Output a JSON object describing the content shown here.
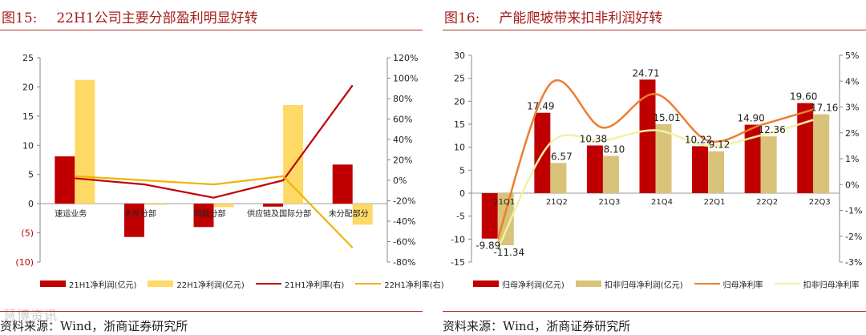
{
  "figures": [
    {
      "id": "fig15",
      "number": "图15:",
      "title": "22H1公司主要分部盈利明显好转",
      "source": "资料来源：Wind，浙商证券研究所"
    },
    {
      "id": "fig16",
      "number": "图16:",
      "title": "产能爬坡带来扣非利润好转",
      "source": "资料来源：Wind，浙商证券研究所"
    }
  ],
  "watermark": "慧博资讯",
  "chart_data": [
    {
      "type": "bar",
      "title": "22H1公司主要分部盈利明显好转",
      "categories": [
        "速运业务",
        "大件分部",
        "同城分部",
        "供应链及国际分部",
        "未分配部分"
      ],
      "series": [
        {
          "name": "21H1净利润(亿元)",
          "kind": "bar",
          "axis": "left",
          "color": "#c00000",
          "values": [
            8.1,
            -5.7,
            -4.0,
            -0.5,
            6.7
          ]
        },
        {
          "name": "22H1净利润(亿元)",
          "kind": "bar",
          "axis": "left",
          "color": "#ffd966",
          "values": [
            21.2,
            -0.2,
            -0.6,
            16.9,
            -3.6
          ]
        },
        {
          "name": "21H1净利率(右)",
          "kind": "line",
          "axis": "right",
          "color": "#c00000",
          "values": [
            2,
            -4,
            -17,
            0,
            93
          ]
        },
        {
          "name": "22H1净利率(右)",
          "kind": "line",
          "axis": "right",
          "color": "#f0b400",
          "values": [
            4,
            0,
            -4,
            4,
            -66
          ]
        }
      ],
      "left_axis": {
        "min": -10,
        "max": 25,
        "ticks": [
          "25",
          "20",
          "15",
          "10",
          "5",
          "0",
          "(5)",
          "(10)"
        ]
      },
      "right_axis": {
        "min": -80,
        "max": 120,
        "ticks": [
          "120%",
          "100%",
          "80%",
          "60%",
          "40%",
          "20%",
          "0%",
          "-20%",
          "-40%",
          "-60%",
          "-80%"
        ]
      },
      "legend_position": "bottom"
    },
    {
      "type": "bar",
      "title": "产能爬坡带来扣非利润好转",
      "categories": [
        "21Q1",
        "21Q2",
        "21Q3",
        "21Q4",
        "22Q1",
        "22Q2",
        "22Q3"
      ],
      "series": [
        {
          "name": "归母净利润(亿元)",
          "kind": "bar",
          "axis": "left",
          "color": "#c00000",
          "values": [
            -9.89,
            17.49,
            10.38,
            24.71,
            10.22,
            14.9,
            19.6
          ],
          "labels": [
            "-9.89",
            "17.49",
            "10.38",
            "24.71",
            "10.22",
            "14.90",
            "19.60"
          ]
        },
        {
          "name": "扣非归母净利润(亿元)",
          "kind": "bar",
          "axis": "left",
          "color": "#d9c27a",
          "values": [
            -11.34,
            6.57,
            8.1,
            15.01,
            9.12,
            12.36,
            17.16
          ],
          "labels": [
            "-11.34",
            "6.57",
            "8.10",
            "15.01",
            "9.12",
            "12.36",
            "17.16"
          ]
        },
        {
          "name": "归母净利率",
          "kind": "line",
          "axis": "right",
          "color": "#ed7d31",
          "values": [
            -2.1,
            3.9,
            2.2,
            3.5,
            1.7,
            2.3,
            2.9
          ]
        },
        {
          "name": "扣非归母净利率",
          "kind": "line",
          "axis": "right",
          "color": "#f3f0a6",
          "values": [
            -2.5,
            1.6,
            1.7,
            2.1,
            1.5,
            1.9,
            2.5
          ]
        }
      ],
      "left_axis": {
        "min": -15,
        "max": 30,
        "ticks": [
          "30",
          "25",
          "20",
          "15",
          "10",
          "5",
          "0",
          "-5",
          "-10",
          "-15"
        ]
      },
      "right_axis": {
        "min": -3,
        "max": 5,
        "ticks": [
          "5%",
          "4%",
          "3%",
          "2%",
          "1%",
          "0%",
          "-1%",
          "-2%",
          "-3%"
        ]
      },
      "legend_position": "bottom"
    }
  ]
}
